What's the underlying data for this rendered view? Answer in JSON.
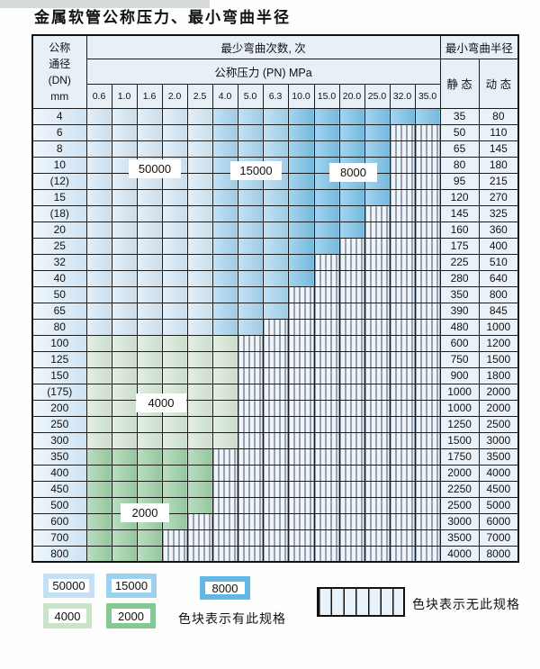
{
  "page": {
    "title": "金属软管公称压力、最小弯曲半径"
  },
  "table": {
    "header": {
      "dn_lines": [
        "公称",
        "通径",
        "(DN)",
        "mm"
      ],
      "bend_cycles_label": "最少弯曲次数, 次",
      "pressure_label": "公称压力 (PN) MPa",
      "radius_label": "最小弯曲半径",
      "static_label": "静 态",
      "dynamic_label": "动 态",
      "pressure_columns": [
        "0.6",
        "1.0",
        "1.6",
        "2.0",
        "2.5",
        "4.0",
        "5.0",
        "6.3",
        "10.0",
        "15.0",
        "20.0",
        "25.0",
        "32.0",
        "35.0"
      ]
    },
    "rows": [
      {
        "dn": "4",
        "colored": 14,
        "fill": "blue",
        "static": "35",
        "dynamic": "80"
      },
      {
        "dn": "6",
        "colored": 12,
        "fill": "blue",
        "static": "50",
        "dynamic": "110"
      },
      {
        "dn": "8",
        "colored": 12,
        "fill": "blue",
        "static": "65",
        "dynamic": "145"
      },
      {
        "dn": "10",
        "colored": 12,
        "fill": "blue",
        "static": "80",
        "dynamic": "180"
      },
      {
        "dn": "(12)",
        "colored": 12,
        "fill": "blue",
        "static": "95",
        "dynamic": "215"
      },
      {
        "dn": "15",
        "colored": 12,
        "fill": "blue",
        "static": "120",
        "dynamic": "270"
      },
      {
        "dn": "(18)",
        "colored": 11,
        "fill": "blue",
        "static": "145",
        "dynamic": "325"
      },
      {
        "dn": "20",
        "colored": 11,
        "fill": "blue",
        "static": "160",
        "dynamic": "360"
      },
      {
        "dn": "25",
        "colored": 10,
        "fill": "blue",
        "static": "175",
        "dynamic": "400"
      },
      {
        "dn": "32",
        "colored": 9,
        "fill": "blue",
        "static": "225",
        "dynamic": "510"
      },
      {
        "dn": "40",
        "colored": 9,
        "fill": "blue",
        "static": "280",
        "dynamic": "640"
      },
      {
        "dn": "50",
        "colored": 8,
        "fill": "blue",
        "static": "350",
        "dynamic": "800"
      },
      {
        "dn": "65",
        "colored": 8,
        "fill": "blue",
        "static": "390",
        "dynamic": "845"
      },
      {
        "dn": "80",
        "colored": 7,
        "fill": "blue",
        "static": "480",
        "dynamic": "1000"
      },
      {
        "dn": "100",
        "colored": 6,
        "fill": "green4000",
        "static": "600",
        "dynamic": "1200"
      },
      {
        "dn": "125",
        "colored": 6,
        "fill": "green4000",
        "static": "750",
        "dynamic": "1500"
      },
      {
        "dn": "150",
        "colored": 6,
        "fill": "green4000",
        "static": "900",
        "dynamic": "1800"
      },
      {
        "dn": "(175)",
        "colored": 6,
        "fill": "green4000",
        "static": "1000",
        "dynamic": "2000"
      },
      {
        "dn": "200",
        "colored": 6,
        "fill": "green4000",
        "static": "1000",
        "dynamic": "2000"
      },
      {
        "dn": "250",
        "colored": 6,
        "fill": "green4000",
        "static": "1250",
        "dynamic": "2500"
      },
      {
        "dn": "300",
        "colored": 6,
        "fill": "green4000",
        "static": "1500",
        "dynamic": "3000"
      },
      {
        "dn": "350",
        "colored": 5,
        "fill": "green2000",
        "static": "1750",
        "dynamic": "3500"
      },
      {
        "dn": "400",
        "colored": 5,
        "fill": "green2000",
        "static": "2000",
        "dynamic": "4000"
      },
      {
        "dn": "450",
        "colored": 5,
        "fill": "green2000",
        "static": "2250",
        "dynamic": "4500"
      },
      {
        "dn": "500",
        "colored": 5,
        "fill": "green2000",
        "static": "2500",
        "dynamic": "5000"
      },
      {
        "dn": "600",
        "colored": 4,
        "fill": "green2000",
        "static": "3000",
        "dynamic": "6000"
      },
      {
        "dn": "700",
        "colored": 3,
        "fill": "green2000",
        "static": "3500",
        "dynamic": "7000"
      },
      {
        "dn": "800",
        "colored": 3,
        "fill": "green2000",
        "static": "4000",
        "dynamic": "8000"
      }
    ],
    "region_labels": {
      "l50000": "50000",
      "l15000": "15000",
      "l8000": "8000",
      "l4000": "4000",
      "l2000": "2000"
    }
  },
  "legend": {
    "items": [
      {
        "label": "50000",
        "color": "#c3e0f4"
      },
      {
        "label": "15000",
        "color": "#9cd2ef"
      },
      {
        "label": "8000",
        "color": "#62b7e6"
      },
      {
        "label": "4000",
        "color": "#c9e4c9"
      },
      {
        "label": "2000",
        "color": "#84c893"
      }
    ],
    "has_spec_note": "色块表示有此规格",
    "no_spec_note": "色块表示无此规格"
  },
  "colors": {
    "cycles_50000": "#d6e9f7",
    "cycles_15000": "#a8d6f1",
    "cycles_8000": "#7cc3ea",
    "cycles_4000": "#d6e9d6",
    "cycles_2000": "#9cd1a5",
    "hatch_bg": "#eef4fa",
    "hatch_line": "#3d4f60"
  }
}
